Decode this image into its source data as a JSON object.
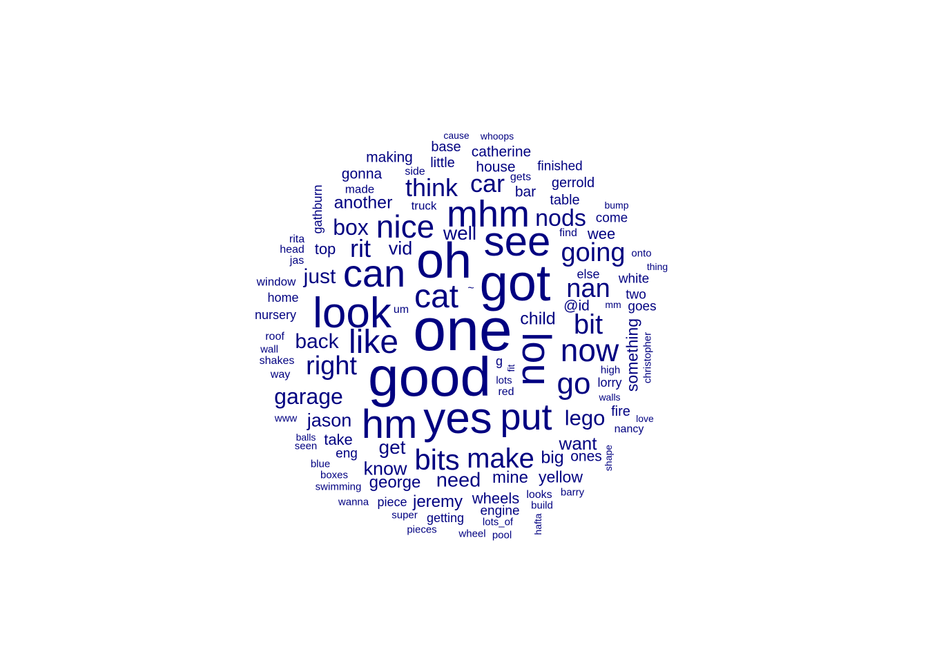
{
  "color": "#000080",
  "words": [
    {
      "text": "one",
      "weight": 10
    },
    {
      "text": "good",
      "weight": 9.3
    },
    {
      "text": "oh",
      "weight": 8.5
    },
    {
      "text": "got",
      "weight": 8.5
    },
    {
      "text": "yes",
      "weight": 7.5
    },
    {
      "text": "hm",
      "weight": 7
    },
    {
      "text": "look",
      "weight": 7.4
    },
    {
      "text": "lou",
      "weight": 6.9
    },
    {
      "text": "see",
      "weight": 7
    },
    {
      "text": "mhm",
      "weight": 6.5
    },
    {
      "text": "put",
      "weight": 6.4
    },
    {
      "text": "can",
      "weight": 6.8
    },
    {
      "text": "cat",
      "weight": 6
    },
    {
      "text": "nice",
      "weight": 6
    },
    {
      "text": "like",
      "weight": 6
    },
    {
      "text": "now",
      "weight": 5.8
    },
    {
      "text": "go",
      "weight": 5.6
    },
    {
      "text": "bits",
      "weight": 5.5
    },
    {
      "text": "make",
      "weight": 5.3
    },
    {
      "text": "bit",
      "weight": 5
    },
    {
      "text": "nan",
      "weight": 5
    },
    {
      "text": "right",
      "weight": 5
    },
    {
      "text": "going",
      "weight": 5
    },
    {
      "text": "rit",
      "weight": 4.8
    },
    {
      "text": "car",
      "weight": 4.8
    },
    {
      "text": "think",
      "weight": 4.8
    },
    {
      "text": "nods",
      "weight": 4.5
    },
    {
      "text": "box",
      "weight": 4.3
    },
    {
      "text": "garage",
      "weight": 4.3
    },
    {
      "text": "lego",
      "weight": 4.2
    },
    {
      "text": "back",
      "weight": 4.1
    },
    {
      "text": "just",
      "weight": 4
    },
    {
      "text": "need",
      "weight": 3.9
    },
    {
      "text": "well",
      "weight": 3.8
    },
    {
      "text": "get",
      "weight": 3.8
    },
    {
      "text": "jason",
      "weight": 3.7
    },
    {
      "text": "vid",
      "weight": 3.6
    },
    {
      "text": "know",
      "weight": 3.6
    },
    {
      "text": "want",
      "weight": 3.5
    },
    {
      "text": "child",
      "weight": 3.4
    },
    {
      "text": "another",
      "weight": 3.4
    },
    {
      "text": "big",
      "weight": 3.4
    },
    {
      "text": "mine",
      "weight": 3.3
    },
    {
      "text": "george",
      "weight": 3.3
    },
    {
      "text": "jeremy",
      "weight": 3.3
    },
    {
      "text": "yellow",
      "weight": 3.2
    },
    {
      "text": "something",
      "weight": 3.2
    },
    {
      "text": "top",
      "weight": 3.1
    },
    {
      "text": "take",
      "weight": 3.1
    },
    {
      "text": "wheels",
      "weight": 3.1
    },
    {
      "text": "wee",
      "weight": 3.0
    },
    {
      "text": "ones",
      "weight": 3.0
    },
    {
      "text": "@id",
      "weight": 3.0
    },
    {
      "text": "gerrold",
      "weight": 2.9
    },
    {
      "text": "catherine",
      "weight": 2.9
    },
    {
      "text": "making",
      "weight": 2.9
    },
    {
      "text": "gonna",
      "weight": 2.9
    },
    {
      "text": "house",
      "weight": 2.9
    },
    {
      "text": "bar",
      "weight": 2.9
    },
    {
      "text": "table",
      "weight": 2.8
    },
    {
      "text": "little",
      "weight": 2.8
    },
    {
      "text": "base",
      "weight": 2.8
    },
    {
      "text": "finished",
      "weight": 2.7
    },
    {
      "text": "come",
      "weight": 2.7
    },
    {
      "text": "white",
      "weight": 2.7
    },
    {
      "text": "two",
      "weight": 2.7
    },
    {
      "text": "goes",
      "weight": 2.7
    },
    {
      "text": "fire",
      "weight": 2.7
    },
    {
      "text": "eng",
      "weight": 2.7
    },
    {
      "text": "engine",
      "weight": 2.7
    },
    {
      "text": "getting",
      "weight": 2.6
    },
    {
      "text": "piece",
      "weight": 2.6
    },
    {
      "text": "lorry",
      "weight": 2.6
    },
    {
      "text": "gathburn",
      "weight": 2.6
    },
    {
      "text": "home",
      "weight": 2.6
    },
    {
      "text": "nursery",
      "weight": 2.5
    },
    {
      "text": "else",
      "weight": 2.6
    },
    {
      "text": "g",
      "weight": 2.5
    },
    {
      "text": "truck",
      "weight": 2.4
    },
    {
      "text": "made",
      "weight": 2.4
    },
    {
      "text": "side",
      "weight": 2.4
    },
    {
      "text": "gets",
      "weight": 2.4
    },
    {
      "text": "window",
      "weight": 2.4
    },
    {
      "text": "rita",
      "weight": 2.4
    },
    {
      "text": "head",
      "weight": 2.4
    },
    {
      "text": "jas",
      "weight": 2.4
    },
    {
      "text": "find",
      "weight": 2.4
    },
    {
      "text": "onto",
      "weight": 2.3
    },
    {
      "text": "um",
      "weight": 2.3
    },
    {
      "text": "christopher",
      "weight": 2.3
    },
    {
      "text": "red",
      "weight": 2.4
    },
    {
      "text": "lots",
      "weight": 2.3
    },
    {
      "text": "nancy",
      "weight": 2.4
    },
    {
      "text": "looks",
      "weight": 2.4
    },
    {
      "text": "barry",
      "weight": 2.3
    },
    {
      "text": "build",
      "weight": 2.3
    },
    {
      "text": "lots_of",
      "weight": 2.3
    },
    {
      "text": "super",
      "weight": 2.3
    },
    {
      "text": "pieces",
      "weight": 2.3
    },
    {
      "text": "wheel",
      "weight": 2.2
    },
    {
      "text": "pool",
      "weight": 2.2
    },
    {
      "text": "wanna",
      "weight": 2.2
    },
    {
      "text": "swimming",
      "weight": 2.3
    },
    {
      "text": "boxes",
      "weight": 2.3
    },
    {
      "text": "blue",
      "weight": 2.2
    },
    {
      "text": "seen",
      "weight": 2.2
    },
    {
      "text": "balls",
      "weight": 2.2
    },
    {
      "text": "www",
      "weight": 2.2
    },
    {
      "text": "way",
      "weight": 2.3
    },
    {
      "text": "shakes",
      "weight": 2.3
    },
    {
      "text": "wall",
      "weight": 2.2
    },
    {
      "text": "roof",
      "weight": 2.3
    },
    {
      "text": "high",
      "weight": 2.2
    },
    {
      "text": "walls",
      "weight": 2.1
    },
    {
      "text": "love",
      "weight": 2.1
    },
    {
      "text": "mm",
      "weight": 2.1
    },
    {
      "text": "thing",
      "weight": 2.1
    },
    {
      "text": "bump",
      "weight": 2.1
    },
    {
      "text": "cause",
      "weight": 2.1
    },
    {
      "text": "whoops",
      "weight": 2.1
    },
    {
      "text": "shape",
      "weight": 2.1
    },
    {
      "text": "hafta",
      "weight": 2.1
    },
    {
      "text": "fit",
      "weight": 2.1
    },
    {
      "text": "~",
      "weight": 2.1
    }
  ]
}
